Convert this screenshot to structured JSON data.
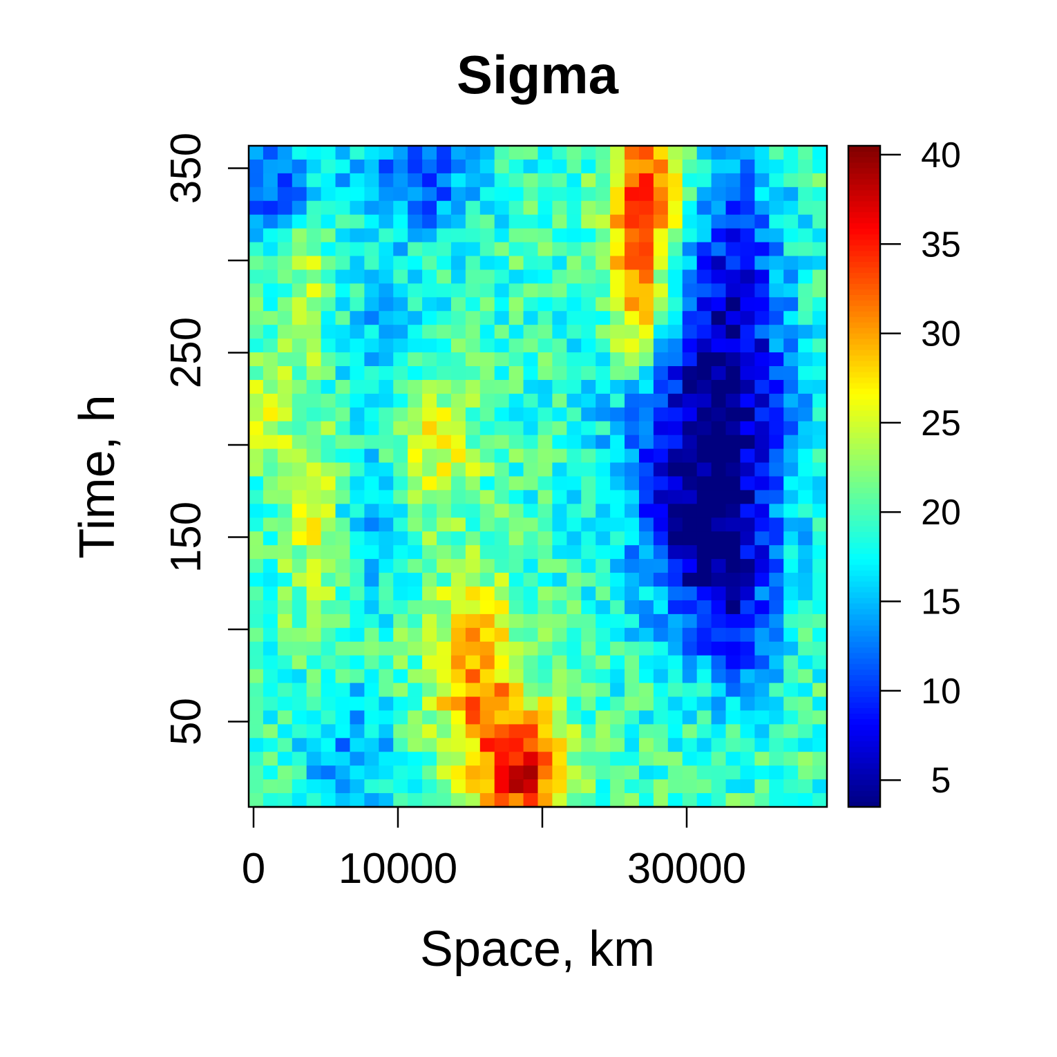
{
  "chart_data": {
    "type": "heatmap",
    "title": "Sigma",
    "xlabel": "Space, km",
    "ylabel": "Time, h",
    "x_range": [
      0,
      40000
    ],
    "y_range": [
      0,
      360
    ],
    "x_ticks": [
      0,
      10000,
      20000,
      30000
    ],
    "x_tick_labels": [
      "0",
      "10000",
      "",
      "30000"
    ],
    "y_ticks": [
      50,
      100,
      150,
      200,
      250,
      300,
      350
    ],
    "y_tick_labels": [
      "50",
      "",
      "150",
      "",
      "250",
      "",
      "350"
    ],
    "colorbar_range": [
      3.5,
      40.5
    ],
    "colorbar_ticks": [
      5,
      10,
      15,
      20,
      25,
      30,
      35,
      40
    ],
    "colorbar_tick_labels": [
      "5",
      "10",
      "15",
      "20",
      "25",
      "30",
      "35",
      "40"
    ],
    "colormap": [
      "#00007F",
      "#0000FF",
      "#007FFF",
      "#00FFFF",
      "#7FFF7F",
      "#FFFF00",
      "#FF7F00",
      "#FF0000",
      "#7F0000"
    ],
    "grid": false,
    "grid_cols": 40,
    "grid_rows": 48,
    "regions": [
      {
        "x": 31500,
        "y": 195,
        "sx": 4200,
        "sy": 60,
        "amp": -12
      },
      {
        "x": 33500,
        "y": 280,
        "sx": 2500,
        "sy": 60,
        "amp": -9
      },
      {
        "x": 32000,
        "y": 140,
        "sx": 2800,
        "sy": 35,
        "amp": -8
      },
      {
        "x": 34000,
        "y": 90,
        "sx": 1800,
        "sy": 25,
        "amp": -6
      },
      {
        "x": 12000,
        "y": 345,
        "sx": 3000,
        "sy": 25,
        "amp": -9
      },
      {
        "x": 2000,
        "y": 340,
        "sx": 2500,
        "sy": 25,
        "amp": -9
      },
      {
        "x": 27500,
        "y": 330,
        "sx": 1800,
        "sy": 35,
        "amp": 15
      },
      {
        "x": 26800,
        "y": 270,
        "sx": 1300,
        "sy": 25,
        "amp": 9
      },
      {
        "x": 19000,
        "y": 20,
        "sx": 2200,
        "sy": 25,
        "amp": 17
      },
      {
        "x": 15500,
        "y": 75,
        "sx": 2200,
        "sy": 35,
        "amp": 11
      },
      {
        "x": 13000,
        "y": 195,
        "sx": 2000,
        "sy": 25,
        "amp": 7
      },
      {
        "x": 4500,
        "y": 160,
        "sx": 1500,
        "sy": 40,
        "amp": 6
      },
      {
        "x": 1200,
        "y": 215,
        "sx": 1200,
        "sy": 20,
        "amp": 5
      },
      {
        "x": 4000,
        "y": 290,
        "sx": 1200,
        "sy": 40,
        "amp": 5
      },
      {
        "x": 7000,
        "y": 30,
        "sx": 2200,
        "sy": 25,
        "amp": -6
      },
      {
        "x": 8000,
        "y": 155,
        "sx": 1500,
        "sy": 30,
        "amp": -5
      },
      {
        "x": 9000,
        "y": 250,
        "sx": 2500,
        "sy": 30,
        "amp": -4
      }
    ],
    "base_value": 19.5,
    "noise_amplitude": 3.5
  }
}
